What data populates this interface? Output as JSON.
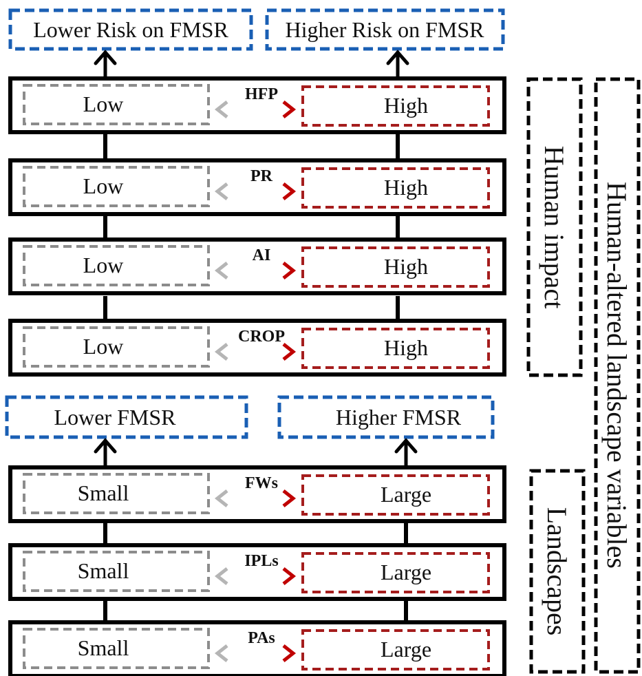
{
  "outcome_top": {
    "lower": "Lower Risk on FMSR",
    "higher": "Higher Risk on FMSR"
  },
  "outcome_bottom": {
    "lower": "Lower FMSR",
    "higher": "Higher FMSR"
  },
  "human_impact_rows": [
    {
      "variable": "HFP",
      "low": "Low",
      "high": "High"
    },
    {
      "variable": "PR",
      "low": "Low",
      "high": "High"
    },
    {
      "variable": "AI",
      "low": "Low",
      "high": "High"
    },
    {
      "variable": "CROP",
      "low": "Low",
      "high": "High"
    }
  ],
  "landscape_rows": [
    {
      "variable": "FWs",
      "low": "Small",
      "high": "Large"
    },
    {
      "variable": "IPLs",
      "low": "Small",
      "high": "Large"
    },
    {
      "variable": "PAs",
      "low": "Small",
      "high": "Large"
    }
  ],
  "group_labels": {
    "human_impact": "Human impact",
    "landscapes": "Landscapes",
    "overall": "Human-altered landscape variables"
  },
  "colors": {
    "blue": "#1a5fb4",
    "gray": "#8c8c8c",
    "red": "#a51d1d",
    "black": "#000000"
  }
}
